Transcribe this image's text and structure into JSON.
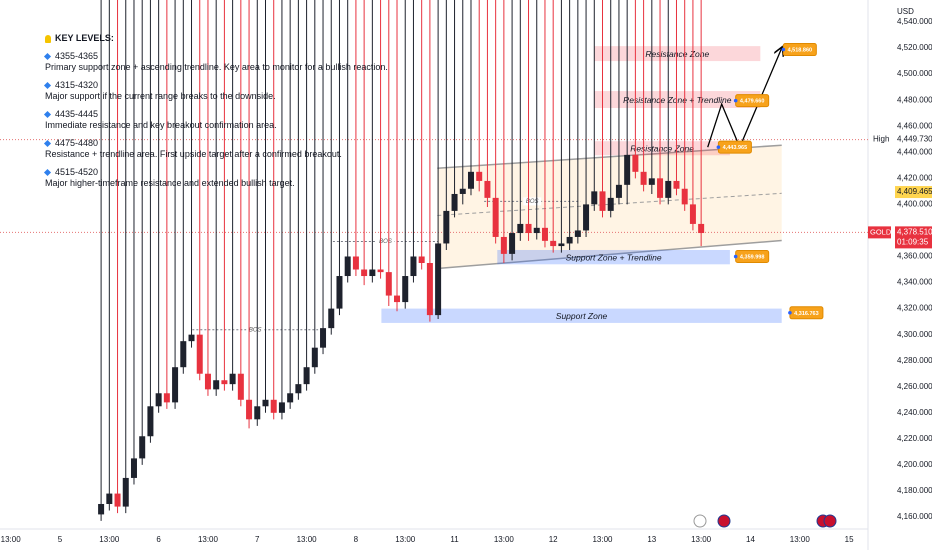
{
  "key_levels": {
    "title": "KEY LEVELS:",
    "items": [
      {
        "range": "4355-4365",
        "text": "Primary support zone + ascending trendline. Key area to monitor for a bullish reaction."
      },
      {
        "range": "4315-4320",
        "text": "Major support if the current range breaks to the downside."
      },
      {
        "range": "4435-4445",
        "text": "Immediate resistance and key breakout confirmation area."
      },
      {
        "range": "4475-4480",
        "text": "Resistance + trendline area. First upside target after a confirmed breakout."
      },
      {
        "range": "4515-4520",
        "text": "Major higher-timeframe resistance and extended bullish target."
      }
    ]
  },
  "chart_data": {
    "type": "candlestick",
    "symbol": "GOLD",
    "currency": "USD",
    "up_color": "#1e222d",
    "down_color": "#e8323f",
    "x": [
      12.3,
      13.3,
      14.3,
      15.3,
      16.3,
      17.3,
      18.3,
      19.3,
      20.3,
      21.3,
      22.3,
      23.3,
      24.3,
      25.3,
      26.3,
      27.3,
      28.3,
      29.3,
      30.3,
      31.3,
      32.3,
      33.3,
      34.3,
      35.3,
      36.3,
      37.3,
      38.3,
      39.3,
      40.3,
      41.3,
      42.3,
      43.3,
      44.3,
      45.3,
      46.3,
      47.3,
      48.3,
      49.3,
      50.3,
      51.3,
      52.3,
      53.3,
      54.3,
      55.3,
      56.3,
      57.3,
      58.3,
      59.3,
      60.3,
      61.3,
      62.3,
      63.3,
      64.3,
      65.3,
      66.3,
      67.3,
      68.3,
      69.3,
      70.3,
      71.3,
      72.3,
      73.3,
      74.3,
      75.3,
      76.3,
      77.3,
      78.3,
      79.3,
      80.3,
      81.3,
      82.3,
      83.3,
      84.3,
      85.3
    ],
    "open": [
      4162,
      4170,
      4178,
      4168,
      4190,
      4205,
      4222,
      4245,
      4255,
      4248,
      4275,
      4295,
      4300,
      4270,
      4258,
      4265,
      4262,
      4270,
      4250,
      4235,
      4245,
      4250,
      4240,
      4248,
      4255,
      4262,
      4275,
      4290,
      4305,
      4320,
      4345,
      4360,
      4350,
      4345,
      4350,
      4348,
      4330,
      4325,
      4345,
      4360,
      4355,
      4315,
      4370,
      4395,
      4408,
      4412,
      4425,
      4418,
      4405,
      4375,
      4362,
      4378,
      4385,
      4378,
      4382,
      4372,
      4368,
      4370,
      4375,
      4380,
      4400,
      4410,
      4395,
      4405,
      4415,
      4438,
      4425,
      4415,
      4420,
      4405,
      4418,
      4412,
      4400,
      4385
    ],
    "high": {
      "label": "High",
      "value": 4449.73,
      "value_label": "4,449.730"
    },
    "low": [
      4157,
      4165,
      4163,
      4163,
      4185,
      4200,
      4217,
      4240,
      4243,
      4243,
      4270,
      4290,
      4265,
      4253,
      4253,
      4257,
      4257,
      4245,
      4228,
      4230,
      4240,
      4235,
      4235,
      4243,
      4250,
      4257,
      4270,
      4285,
      4300,
      4315,
      4340,
      4345,
      4338,
      4340,
      4343,
      4322,
      4318,
      4320,
      4340,
      4350,
      4310,
      4312,
      4365,
      4390,
      4400,
      4407,
      4410,
      4398,
      4370,
      4355,
      4357,
      4372,
      4372,
      4373,
      4367,
      4363,
      4363,
      4365,
      4370,
      4375,
      4395,
      4390,
      4390,
      4400,
      4400,
      4420,
      4410,
      4408,
      4400,
      4400,
      4407,
      4395,
      4380,
      4368
    ],
    "close": [
      4170,
      4178,
      4168,
      4190,
      4205,
      4222,
      4245,
      4255,
      4248,
      4275,
      4295,
      4300,
      4270,
      4258,
      4265,
      4262,
      4270,
      4250,
      4235,
      4245,
      4250,
      4240,
      4248,
      4255,
      4262,
      4275,
      4290,
      4305,
      4320,
      4345,
      4360,
      4350,
      4345,
      4350,
      4348,
      4330,
      4325,
      4345,
      4360,
      4355,
      4315,
      4370,
      4395,
      4408,
      4412,
      4425,
      4418,
      4405,
      4375,
      4362,
      4378,
      4385,
      4378,
      4382,
      4372,
      4368,
      4370,
      4375,
      4380,
      4400,
      4410,
      4395,
      4405,
      4415,
      4438,
      4425,
      4415,
      4420,
      4405,
      4418,
      4412,
      4400,
      4385,
      4378
    ],
    "xlim": [
      0,
      105.6
    ],
    "xticks": [
      {
        "value": 1.3,
        "label": "13:00"
      },
      {
        "value": 7.3,
        "label": "5"
      },
      {
        "value": 13.3,
        "label": "13:00"
      },
      {
        "value": 19.3,
        "label": "6"
      },
      {
        "value": 25.3,
        "label": "13:00"
      },
      {
        "value": 31.3,
        "label": "7"
      },
      {
        "value": 37.3,
        "label": "13:00"
      },
      {
        "value": 43.3,
        "label": "8"
      },
      {
        "value": 49.3,
        "label": "13:00"
      },
      {
        "value": 55.3,
        "label": "11"
      },
      {
        "value": 61.3,
        "label": "13:00"
      },
      {
        "value": 67.3,
        "label": "12"
      },
      {
        "value": 73.3,
        "label": "13:00"
      },
      {
        "value": 79.3,
        "label": "13"
      },
      {
        "value": 85.3,
        "label": "13:00"
      },
      {
        "value": 91.3,
        "label": "14"
      },
      {
        "value": 97.3,
        "label": "13:00"
      },
      {
        "value": 103.3,
        "label": "15"
      }
    ],
    "ylim": [
      4150.8,
      4556.9
    ],
    "yticks": [
      {
        "value": 4160,
        "label": "4,160.000"
      },
      {
        "value": 4180,
        "label": "4,180.000"
      },
      {
        "value": 4200,
        "label": "4,200.000"
      },
      {
        "value": 4220,
        "label": "4,220.000"
      },
      {
        "value": 4240,
        "label": "4,240.000"
      },
      {
        "value": 4260,
        "label": "4,260.000"
      },
      {
        "value": 4280,
        "label": "4,280.000"
      },
      {
        "value": 4300,
        "label": "4,300.000"
      },
      {
        "value": 4320,
        "label": "4,320.000"
      },
      {
        "value": 4340,
        "label": "4,340.000"
      },
      {
        "value": 4360,
        "label": "4,360.000"
      },
      {
        "value": 4380,
        "label": "4,380.000"
      },
      {
        "value": 4400,
        "label": "4,400.000"
      },
      {
        "value": 4420,
        "label": "4,420.000"
      },
      {
        "value": 4440,
        "label": "4,440.000"
      },
      {
        "value": 4460,
        "label": "4,460.000"
      },
      {
        "value": 4480,
        "label": "4,480.000"
      },
      {
        "value": 4500,
        "label": "4,500.000"
      },
      {
        "value": 4520,
        "label": "4,520.000"
      },
      {
        "value": 4540,
        "label": "4,540.000"
      }
    ],
    "grid": false,
    "channel": {
      "x": [
        53.2,
        95.1
      ],
      "upper": [
        4427.7,
        4445.4
      ],
      "middle": [
        4391.5,
        4408.5
      ],
      "lower": [
        4350.8,
        4372.3
      ]
    },
    "zones": [
      {
        "label": "Resistance Zone",
        "ylim": [
          4510,
          4521.5
        ],
        "xlim": [
          72.3,
          92.5
        ],
        "color": "rgba(242,54,69,0.2)"
      },
      {
        "label": "Resistance Zone + Trendline",
        "ylim": [
          4474,
          4487
        ],
        "xlim": [
          72.3,
          92.5
        ],
        "color": "rgba(242,54,69,0.2)"
      },
      {
        "label": "Resistance Zone",
        "ylim": [
          4437.7,
          4448.5
        ],
        "xlim": [
          72.3,
          88.8
        ],
        "color": "rgba(242,54,69,0.2)"
      },
      {
        "label": "Support Zone + Trendline",
        "ylim": [
          4354,
          4365
        ],
        "xlim": [
          60.5,
          88.8
        ],
        "color": "rgba(41,98,255,0.25)"
      },
      {
        "label": "Support Zone",
        "ylim": [
          4309,
          4320
        ],
        "xlim": [
          46.4,
          95.1
        ],
        "color": "rgba(41,98,255,0.25)"
      }
    ],
    "bos": [
      {
        "label": "BOS",
        "y": 4303.8,
        "x": [
          23.4,
          38.7
        ]
      },
      {
        "label": "BOS",
        "y": 4371.5,
        "x": [
          40.5,
          53.3
        ]
      },
      {
        "label": "BOS",
        "y": 4402.3,
        "x": [
          58.9,
          70.6
        ]
      }
    ],
    "price_labels": [
      {
        "value": 4518.86,
        "label": "4,518.860",
        "x": 95.3
      },
      {
        "value": 4479.66,
        "label": "4,479.660",
        "x": 89.5
      },
      {
        "value": 4443.965,
        "label": "4,443.965",
        "x": 87.4
      },
      {
        "value": 4359.998,
        "label": "4,359.998",
        "x": 89.5
      },
      {
        "value": 4316.763,
        "label": "4,316.763",
        "x": 96.1
      }
    ],
    "projection": {
      "x": [
        86.1,
        87.8,
        90.0,
        95.1
      ],
      "y": [
        4443.9,
        4477,
        4443.9,
        4520
      ]
    },
    "ma": {
      "value": 4409.465,
      "value_label": "4,409.465"
    },
    "last": {
      "value": 4378.51,
      "value_label": "4,378.510",
      "countdown": "01:09:35"
    }
  }
}
